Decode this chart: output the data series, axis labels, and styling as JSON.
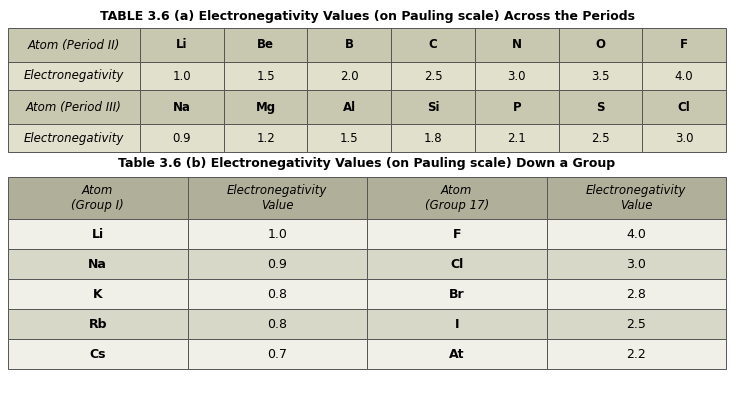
{
  "title_a": "TABLE 3.6 (a) Electronegativity Values (on Pauling scale) Across the Periods",
  "title_b": "Table 3.6 (b) Electronegativity Values (on Pauling scale) Down a Group",
  "table_a_rows": [
    [
      "Atom (Period II)",
      "Li",
      "Be",
      "B",
      "C",
      "N",
      "O",
      "F"
    ],
    [
      "Electronegativity",
      "1.0",
      "1.5",
      "2.0",
      "2.5",
      "3.0",
      "3.5",
      "4.0"
    ],
    [
      "Atom (Period III)",
      "Na",
      "Mg",
      "Al",
      "Si",
      "P",
      "S",
      "Cl"
    ],
    [
      "Electronegativity",
      "0.9",
      "1.2",
      "1.5",
      "1.8",
      "2.1",
      "2.5",
      "3.0"
    ]
  ],
  "table_b_headers": [
    "Atom\n(Group I)",
    "Electronegativity\nValue",
    "Atom\n(Group 17)",
    "Electronegativity\nValue"
  ],
  "table_b_rows": [
    [
      "Li",
      "1.0",
      "F",
      "4.0"
    ],
    [
      "Na",
      "0.9",
      "Cl",
      "3.0"
    ],
    [
      "K",
      "0.8",
      "Br",
      "2.8"
    ],
    [
      "Rb",
      "0.8",
      "I",
      "2.5"
    ],
    [
      "Cs",
      "0.7",
      "At",
      "2.2"
    ]
  ],
  "hdr_bg_a": "#c8c8b0",
  "light_bg_a": "#e0e0cc",
  "hdr_bg_b": "#b0b09a",
  "light_bg_b": "#d8d8c8",
  "data_bg_b_odd": "#f0f0e8",
  "data_bg_b_even": "#d8d8c8",
  "border_color": "#555555",
  "title_a_fontsize": 9.0,
  "title_b_fontsize": 9.0,
  "cell_fontsize": 8.5
}
